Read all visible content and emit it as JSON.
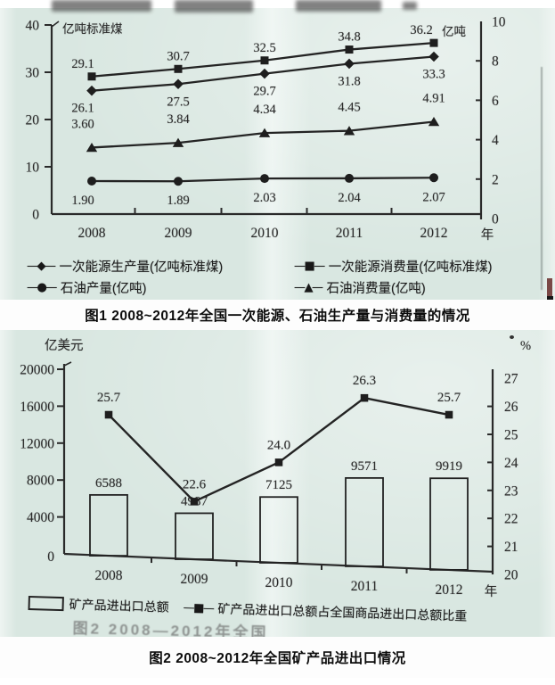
{
  "page": {
    "figure1_caption": "图1  2008~2012年全国一次能源、石油生产量与消费量的情况",
    "figure2_caption": "图2  2008~2012年全国矿产品进出口情况",
    "figure2_cropped_caption": "图2  2008—2012年全国"
  },
  "icons": {
    "diamond_line": "—◆—",
    "square_line": "—■—",
    "circle_line": "—●—",
    "triangle_line": "—▲—"
  },
  "chart_data": [
    {
      "type": "line",
      "title": "图1 2008~2012年全国一次能源、石油生产量与消费量的情况",
      "x_categories": [
        "2008",
        "2009",
        "2010",
        "2011",
        "2012"
      ],
      "x_unit": "年",
      "left_axis": {
        "unit": "亿吨标准煤",
        "ticks": [
          40,
          30,
          20,
          10,
          0
        ],
        "range": [
          0,
          40
        ]
      },
      "right_axis": {
        "unit": "亿吨",
        "ticks": [
          10,
          8,
          6,
          4,
          2,
          0
        ],
        "range": [
          0,
          10
        ]
      },
      "grid": false,
      "legend_position": "bottom",
      "series": [
        {
          "name": "一次能源生产量(亿吨标准煤)",
          "marker": "diamond",
          "axis": "left",
          "values": [
            26.1,
            27.5,
            29.7,
            31.8,
            33.3
          ],
          "labels": [
            "26.1",
            "27.5",
            "29.7",
            "31.8",
            "33.3"
          ]
        },
        {
          "name": "一次能源消费量(亿吨标准煤)",
          "marker": "square",
          "axis": "left",
          "values": [
            29.1,
            30.7,
            32.5,
            34.8,
            36.2
          ],
          "labels": [
            "29.1",
            "30.7",
            "32.5",
            "34.8",
            "36.2"
          ]
        },
        {
          "name": "石油产量(亿吨)",
          "marker": "circle",
          "axis": "right",
          "values": [
            1.9,
            1.89,
            2.03,
            2.04,
            2.07
          ],
          "labels": [
            "1.90",
            "1.89",
            "2.03",
            "2.04",
            "2.07"
          ]
        },
        {
          "name": "石油消费量(亿吨)",
          "marker": "triangle",
          "axis": "right",
          "values": [
            3.6,
            3.84,
            4.34,
            4.45,
            4.91
          ],
          "labels": [
            "3.60",
            "3.84",
            "4.34",
            "4.45",
            "4.91"
          ]
        }
      ]
    },
    {
      "type": "bar+line",
      "title": "图2 2008~2012年全国矿产品进出口情况",
      "x_categories": [
        "2008",
        "2009",
        "2010",
        "2011",
        "2012"
      ],
      "x_unit": "年",
      "left_axis": {
        "unit": "亿美元",
        "ticks": [
          20000,
          16000,
          12000,
          8000,
          4000,
          0
        ],
        "range": [
          0,
          20000
        ]
      },
      "right_axis": {
        "unit": "%",
        "ticks": [
          27,
          26,
          25,
          24,
          23,
          22,
          21,
          20
        ],
        "range": [
          20,
          27
        ]
      },
      "grid": false,
      "legend_position": "bottom",
      "series": [
        {
          "name": "矿产品进出口总额",
          "type": "bar",
          "axis": "left",
          "values": [
            6588,
            4987,
            7125,
            9571,
            9919
          ],
          "labels": [
            "6588",
            "4987",
            "7125",
            "9571",
            "9919"
          ]
        },
        {
          "name": "矿产品进出口总额占全国商品进出口总额比重",
          "type": "line",
          "marker": "square",
          "axis": "right",
          "values": [
            25.7,
            22.6,
            24.0,
            26.3,
            25.7
          ],
          "labels": [
            "25.7",
            "22.6",
            "24.0",
            "26.3",
            "25.7"
          ]
        }
      ]
    }
  ]
}
